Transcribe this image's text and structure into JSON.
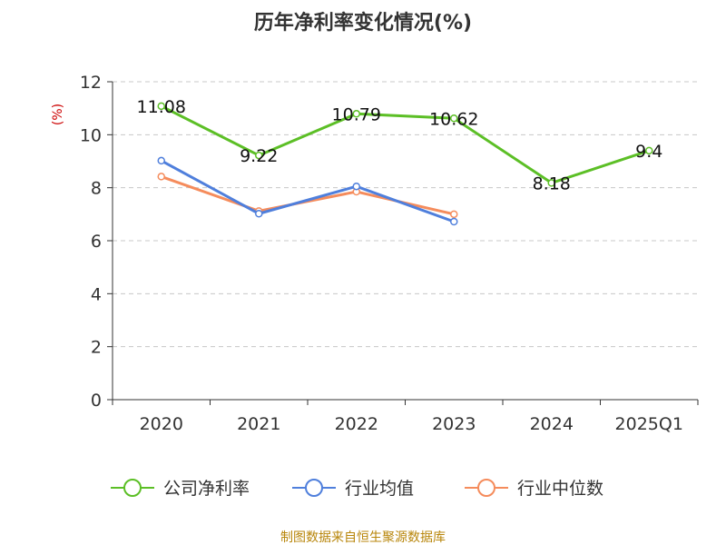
{
  "chart_data": {
    "type": "line",
    "title": "历年净利率变化情况(%)",
    "ylabel": "(%)",
    "xlabel": "",
    "categories": [
      "2020",
      "2021",
      "2022",
      "2023",
      "2024",
      "2025Q1"
    ],
    "ylim": [
      0,
      12
    ],
    "yticks": [
      "0",
      "2",
      "4",
      "6",
      "8",
      "10",
      "12"
    ],
    "grid": true,
    "legend_position": "bottom",
    "series": [
      {
        "name": "公司净利率",
        "color": "#5cbf26",
        "values": [
          11.08,
          9.22,
          10.79,
          10.62,
          8.18,
          9.4
        ],
        "labels": [
          "11.08",
          "9.22",
          "10.79",
          "10.62",
          "8.18",
          "9.4"
        ]
      },
      {
        "name": "行业均值",
        "color": "#4f7fdc",
        "values": [
          9.02,
          7.02,
          8.05,
          6.72,
          null,
          null
        ]
      },
      {
        "name": "行业中位数",
        "color": "#f58c5c",
        "values": [
          8.42,
          7.12,
          7.85,
          7.0,
          null,
          null
        ]
      }
    ]
  },
  "footer": {
    "source": "制图数据来自恒生聚源数据库"
  }
}
